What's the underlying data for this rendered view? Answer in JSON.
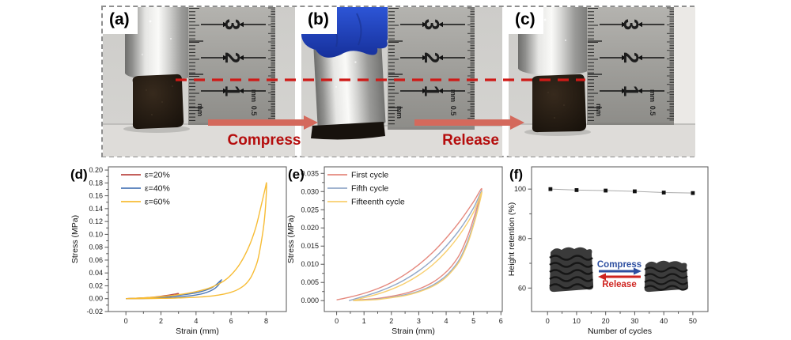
{
  "photos": {
    "a": {
      "label": "(a)"
    },
    "b": {
      "label": "(b)"
    },
    "c": {
      "label": "(c)"
    },
    "ruler": {
      "numbers": [
        "3",
        "2",
        "1"
      ],
      "left_unit": "mm",
      "right_half": "0.5",
      "right_unit": "mm"
    },
    "compress_label": "Compress",
    "release_label": "Release"
  },
  "colors": {
    "dashed_line": "#cf1a17",
    "arrow": "#d4695c",
    "arrow_label": "#b50d0d"
  },
  "chart_data": [
    {
      "panel_label": "(d)",
      "type": "line",
      "xlabel": "Strain (mm)",
      "ylabel": "Stress (MPa)",
      "xlim": [
        -1,
        9.15
      ],
      "ylim": [
        -0.02,
        0.205
      ],
      "xticks": [
        0,
        2,
        4,
        6,
        8
      ],
      "yticks": [
        -0.02,
        0,
        0.02,
        0.04,
        0.06,
        0.08,
        0.1,
        0.12,
        0.14,
        0.16,
        0.18,
        0.2
      ],
      "x_decimals": 0,
      "y_decimals": 2,
      "series": [
        {
          "name": "ε=20%",
          "color": "#bc4a44",
          "points": [
            [
              0,
              0
            ],
            [
              0.5,
              0.0005
            ],
            [
              1,
              0.0012
            ],
            [
              1.5,
              0.0022
            ],
            [
              2,
              0.0038
            ],
            [
              2.5,
              0.0058
            ],
            [
              2.8,
              0.0072
            ],
            [
              3.0,
              0.008
            ],
            [
              2.8,
              0.0052
            ],
            [
              2.5,
              0.0036
            ],
            [
              2.2,
              0.0026
            ],
            [
              1.9,
              0.0018
            ],
            [
              1.5,
              0.001
            ],
            [
              1.1,
              0.0005
            ],
            [
              0.7,
              0.0002
            ],
            [
              0.3,
              0.0001
            ],
            [
              0,
              0
            ]
          ]
        },
        {
          "name": "ε=40%",
          "color": "#4e79b8",
          "points": [
            [
              0,
              0
            ],
            [
              1,
              0.001
            ],
            [
              2,
              0.0028
            ],
            [
              3,
              0.0052
            ],
            [
              3.8,
              0.008
            ],
            [
              4.4,
              0.0118
            ],
            [
              4.9,
              0.017
            ],
            [
              5.2,
              0.023
            ],
            [
              5.45,
              0.0295
            ],
            [
              5.3,
              0.022
            ],
            [
              5.1,
              0.0165
            ],
            [
              4.8,
              0.0118
            ],
            [
              4.4,
              0.008
            ],
            [
              4,
              0.0058
            ],
            [
              3.5,
              0.004
            ],
            [
              3,
              0.0028
            ],
            [
              2.5,
              0.0018
            ],
            [
              2,
              0.0011
            ],
            [
              1.5,
              0.0006
            ],
            [
              1,
              0.0003
            ],
            [
              0.5,
              0.0001
            ],
            [
              0,
              0
            ]
          ]
        },
        {
          "name": "ε=60%",
          "color": "#f7bc35",
          "points": [
            [
              0,
              0
            ],
            [
              1,
              0.0012
            ],
            [
              2,
              0.0032
            ],
            [
              3,
              0.0062
            ],
            [
              4,
              0.011
            ],
            [
              4.8,
              0.017
            ],
            [
              5.5,
              0.026
            ],
            [
              6,
              0.037
            ],
            [
              6.5,
              0.054
            ],
            [
              7,
              0.08
            ],
            [
              7.4,
              0.11
            ],
            [
              7.7,
              0.143
            ],
            [
              7.95,
              0.172
            ],
            [
              8.02,
              0.179
            ],
            [
              7.98,
              0.15
            ],
            [
              7.88,
              0.118
            ],
            [
              7.72,
              0.088
            ],
            [
              7.52,
              0.06
            ],
            [
              7.3,
              0.043
            ],
            [
              7.1,
              0.032
            ],
            [
              6.8,
              0.022
            ],
            [
              6.4,
              0.0145
            ],
            [
              6,
              0.01
            ],
            [
              5.5,
              0.0066
            ],
            [
              5,
              0.0045
            ],
            [
              4.5,
              0.0032
            ],
            [
              4,
              0.0022
            ],
            [
              3.5,
              0.0016
            ],
            [
              3,
              0.0011
            ],
            [
              2.5,
              0.0007
            ],
            [
              2,
              0.0005
            ],
            [
              1.5,
              0.0003
            ],
            [
              1,
              0.0002
            ],
            [
              0.5,
              0.0001
            ],
            [
              0,
              0
            ]
          ]
        }
      ]
    },
    {
      "panel_label": "(e)",
      "type": "line",
      "xlabel": "Strain (mm)",
      "ylabel": "Stress (MPa)",
      "xlim": [
        -0.45,
        6.05
      ],
      "ylim": [
        -0.003,
        0.0368
      ],
      "xticks": [
        0,
        1,
        2,
        3,
        4,
        5,
        6
      ],
      "yticks": [
        0,
        0.005,
        0.01,
        0.015,
        0.02,
        0.025,
        0.03,
        0.035
      ],
      "x_decimals": 0,
      "y_decimals": 3,
      "series": [
        {
          "name": "First cycle",
          "color": "#e5897e",
          "points": [
            [
              0,
              0.0002
            ],
            [
              0.5,
              0.001
            ],
            [
              1,
              0.002
            ],
            [
              1.5,
              0.0033
            ],
            [
              2,
              0.005
            ],
            [
              2.5,
              0.0072
            ],
            [
              3,
              0.0099
            ],
            [
              3.5,
              0.0132
            ],
            [
              4,
              0.0172
            ],
            [
              4.5,
              0.0218
            ],
            [
              5,
              0.0272
            ],
            [
              5.3,
              0.0308
            ],
            [
              5.15,
              0.0262
            ],
            [
              5,
              0.0225
            ],
            [
              4.8,
              0.018
            ],
            [
              4.5,
              0.0128
            ],
            [
              4.2,
              0.0095
            ],
            [
              3.9,
              0.0072
            ],
            [
              3.5,
              0.005
            ],
            [
              3,
              0.0032
            ],
            [
              2.5,
              0.002
            ],
            [
              2,
              0.0012
            ],
            [
              1.5,
              0.0006
            ],
            [
              1,
              0.0003
            ],
            [
              0.7,
              0.0001
            ]
          ]
        },
        {
          "name": "Fifth cycle",
          "color": "#92a8c8",
          "points": [
            [
              0.45,
              0
            ],
            [
              1,
              0.0012
            ],
            [
              1.5,
              0.0024
            ],
            [
              2,
              0.0039
            ],
            [
              2.5,
              0.0058
            ],
            [
              3,
              0.0082
            ],
            [
              3.5,
              0.0112
            ],
            [
              4,
              0.015
            ],
            [
              4.5,
              0.0196
            ],
            [
              5,
              0.0255
            ],
            [
              5.3,
              0.0302
            ],
            [
              5.15,
              0.0252
            ],
            [
              5,
              0.0212
            ],
            [
              4.8,
              0.0166
            ],
            [
              4.5,
              0.0115
            ],
            [
              4.2,
              0.0084
            ],
            [
              3.9,
              0.0062
            ],
            [
              3.5,
              0.0042
            ],
            [
              3,
              0.0026
            ],
            [
              2.5,
              0.0016
            ],
            [
              2,
              0.0009
            ],
            [
              1.5,
              0.0004
            ],
            [
              1,
              0.0002
            ],
            [
              0.6,
              0
            ]
          ]
        },
        {
          "name": "Fifteenth cycle",
          "color": "#f8cf6e",
          "points": [
            [
              0.6,
              0
            ],
            [
              1,
              0.0008
            ],
            [
              1.5,
              0.0018
            ],
            [
              2,
              0.0031
            ],
            [
              2.5,
              0.0048
            ],
            [
              3,
              0.007
            ],
            [
              3.5,
              0.0098
            ],
            [
              4,
              0.0135
            ],
            [
              4.5,
              0.0182
            ],
            [
              5,
              0.0243
            ],
            [
              5.3,
              0.0299
            ],
            [
              5.15,
              0.0248
            ],
            [
              5,
              0.0207
            ],
            [
              4.8,
              0.016
            ],
            [
              4.5,
              0.011
            ],
            [
              4.2,
              0.008
            ],
            [
              3.9,
              0.0058
            ],
            [
              3.5,
              0.0039
            ],
            [
              3,
              0.0024
            ],
            [
              2.5,
              0.0014
            ],
            [
              2,
              0.0008
            ],
            [
              1.5,
              0.0003
            ],
            [
              1,
              0.0001
            ],
            [
              0.65,
              0
            ]
          ]
        }
      ]
    },
    {
      "panel_label": "(f)",
      "type": "scatter-line",
      "xlabel": "Number of cycles",
      "ylabel": "Height retention (%)",
      "xlim": [
        -5.5,
        55.2
      ],
      "ylim": [
        50.5,
        109
      ],
      "xticks": [
        0,
        10,
        20,
        30,
        40,
        50
      ],
      "yticks": [
        60,
        80,
        100
      ],
      "x_decimals": 0,
      "y_decimals": 0,
      "series": [
        {
          "name": "Height retention",
          "color": "#111111",
          "line_color": "#aaaaaa",
          "marker": "square",
          "points": [
            [
              1,
              100
            ],
            [
              10,
              99.6
            ],
            [
              20,
              99.4
            ],
            [
              30,
              99.1
            ],
            [
              40,
              98.6
            ],
            [
              50,
              98.4
            ]
          ]
        }
      ],
      "inset": {
        "compress_label": "Compress",
        "release_label": "Release",
        "compress_color": "#2e4fa0",
        "release_color": "#cf2420"
      }
    }
  ]
}
